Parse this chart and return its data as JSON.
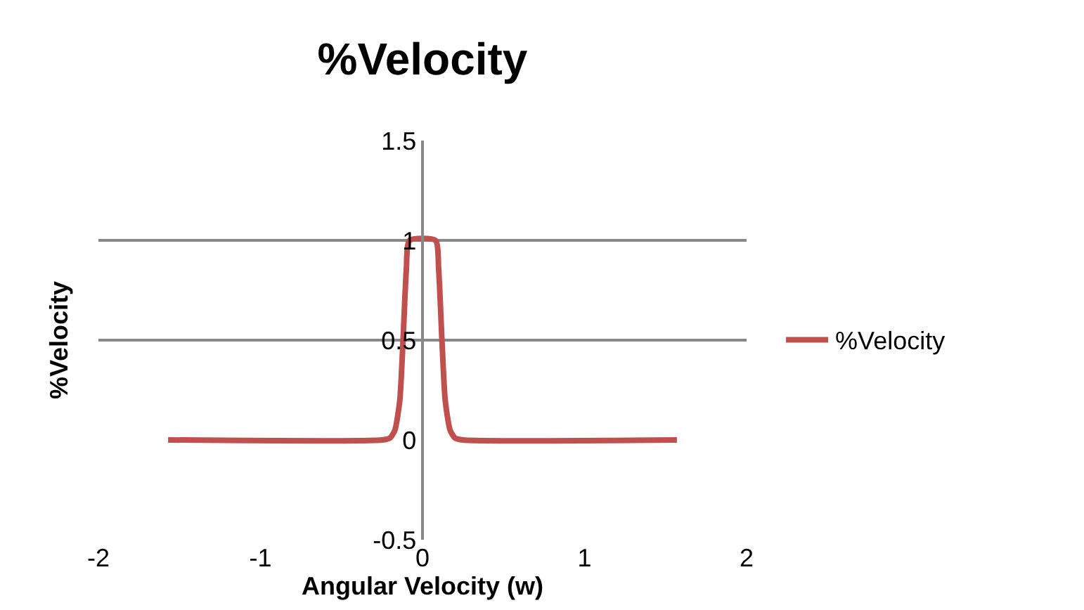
{
  "chart_data": {
    "type": "line",
    "title": "%Velocity",
    "xlabel": "Angular Velocity (w)",
    "ylabel": "%Velocity",
    "series": [
      {
        "name": "%Velocity",
        "color": "#c0504d",
        "x": [
          -1.57,
          -0.25,
          -0.2,
          -0.17,
          -0.14,
          -0.12,
          -0.1,
          -0.08,
          0.08,
          0.1,
          0.12,
          0.14,
          0.17,
          0.2,
          0.25,
          1.57
        ],
        "values": [
          0,
          0,
          0.01,
          0.05,
          0.2,
          0.5,
          0.85,
          1,
          1,
          0.85,
          0.5,
          0.2,
          0.05,
          0.01,
          0,
          0
        ]
      }
    ],
    "xlim": [
      -2,
      2
    ],
    "xticks": [
      -2,
      -1,
      0,
      1,
      2
    ],
    "ylim": [
      -0.5,
      1.5
    ],
    "yticks": [
      -0.5,
      0,
      0.5,
      1,
      1.5
    ],
    "grid": "y",
    "legend": "right",
    "marker": "none",
    "line_style": "solid"
  }
}
